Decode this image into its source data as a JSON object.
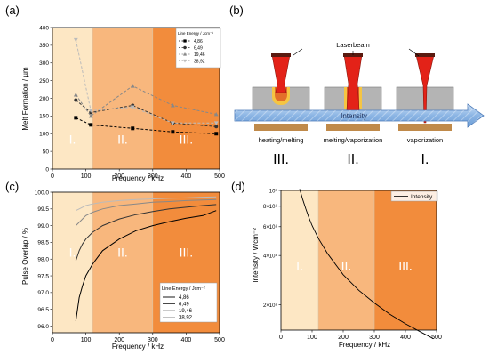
{
  "panel_labels": {
    "a": "(a)",
    "b": "(b)",
    "c": "(c)",
    "d": "(d)"
  },
  "colors": {
    "zone_1": "#fde7c4",
    "zone_2": "#f8b77d",
    "zone_3": "#f28c3c",
    "laser_red": "#e32218",
    "laser_edge": "#8a1a10",
    "block_gray": "#b4b4b4",
    "base_brown": "#c08a4a",
    "arrow_blue": "#8ab4e4"
  },
  "icons": {
    "process_arrow": "arrow-right-icon"
  },
  "chart_data": [
    {
      "panel": "(a)",
      "type": "line",
      "xlabel": "Frequency / kHz",
      "ylabel": "Melt Formation / µm",
      "xlim": [
        0,
        500
      ],
      "ylim": [
        0,
        400
      ],
      "xticks": [
        "0",
        "100",
        "200",
        "300",
        "400",
        "500"
      ],
      "yticks": [
        "0",
        "50",
        "100",
        "150",
        "200",
        "250",
        "300",
        "350",
        "400"
      ],
      "x": [
        70,
        115,
        240,
        360,
        490
      ],
      "zones": [
        {
          "label": "I.",
          "from": 0,
          "to": 120
        },
        {
          "label": "II.",
          "from": 120,
          "to": 300
        },
        {
          "label": "III.",
          "from": 300,
          "to": 500
        }
      ],
      "legend": {
        "title": "Line Energy / Jcm⁻¹",
        "position": "top-right"
      },
      "series": [
        {
          "name": "4,86",
          "values": [
            145,
            125,
            115,
            105,
            100
          ],
          "color": "#000000",
          "marker": "square"
        },
        {
          "name": "6,49",
          "values": [
            195,
            160,
            180,
            130,
            120
          ],
          "color": "#333333",
          "marker": "circle"
        },
        {
          "name": "19,46",
          "values": [
            210,
            150,
            235,
            180,
            155
          ],
          "color": "#888888",
          "marker": "triangle"
        },
        {
          "name": "38,92",
          "values": [
            365,
            165,
            175,
            130,
            130
          ],
          "color": "#bbbbbb",
          "marker": "triangle-down"
        }
      ]
    },
    {
      "panel": "(c)",
      "type": "line",
      "xlabel": "Frequency / kHz",
      "ylabel": "Pulse Overlap / %",
      "xlim": [
        0,
        500
      ],
      "ylim": [
        95.8,
        100.0
      ],
      "xticks": [
        "0",
        "100",
        "200",
        "300",
        "400",
        "500"
      ],
      "yticks": [
        "96.0",
        "96.5",
        "97.0",
        "97.5",
        "98.0",
        "98.5",
        "99.0",
        "99.5",
        "100.0"
      ],
      "x": [
        70,
        80,
        90,
        100,
        120,
        150,
        200,
        250,
        300,
        350,
        400,
        450,
        490
      ],
      "zones": [
        {
          "label": "I.",
          "from": 0,
          "to": 120
        },
        {
          "label": "II.",
          "from": 120,
          "to": 300
        },
        {
          "label": "III.",
          "from": 300,
          "to": 500
        }
      ],
      "legend": {
        "title": "Line Energy / Jcm⁻²",
        "position": "bottom-right"
      },
      "series": [
        {
          "name": "4,86",
          "values": [
            96.15,
            96.85,
            97.2,
            97.5,
            97.85,
            98.25,
            98.6,
            98.85,
            99.0,
            99.12,
            99.22,
            99.3,
            99.45
          ],
          "color": "#000000"
        },
        {
          "name": "6,49",
          "values": [
            97.95,
            98.25,
            98.45,
            98.6,
            98.8,
            99.0,
            99.2,
            99.33,
            99.42,
            99.5,
            99.55,
            99.6,
            99.63
          ],
          "color": "#333333"
        },
        {
          "name": "19,46",
          "values": [
            99.0,
            99.1,
            99.2,
            99.3,
            99.4,
            99.5,
            99.6,
            99.65,
            99.7,
            99.72,
            99.75,
            99.77,
            99.78
          ],
          "color": "#888888"
        },
        {
          "name": "38,92",
          "values": [
            99.45,
            99.5,
            99.55,
            99.6,
            99.65,
            99.7,
            99.75,
            99.78,
            99.8,
            99.82,
            99.83,
            99.85,
            99.86
          ],
          "color": "#bbbbbb"
        }
      ]
    },
    {
      "panel": "(d)",
      "type": "line",
      "scale": "log",
      "xlabel": "Frequency / kHz",
      "ylabel": "Intensity / Wcm⁻²",
      "xlim": [
        0,
        500
      ],
      "ylim": [
        140000000.0,
        1000000000.0
      ],
      "xticks": [
        "0",
        "100",
        "200",
        "300",
        "400",
        "500"
      ],
      "yticks": [
        {
          "label": "10⁹",
          "value": 1000000000.0
        },
        {
          "label": "8×10⁸",
          "value": 800000000.0
        },
        {
          "label": "6×10⁸",
          "value": 600000000.0
        },
        {
          "label": "4×10⁸",
          "value": 400000000.0
        },
        {
          "label": "2×10⁸",
          "value": 200000000.0
        }
      ],
      "x": [
        60,
        70,
        80,
        90,
        100,
        120,
        150,
        200,
        250,
        300,
        350,
        400,
        450,
        490
      ],
      "zones": [
        {
          "label": "I.",
          "from": 0,
          "to": 120
        },
        {
          "label": "II.",
          "from": 120,
          "to": 300
        },
        {
          "label": "III.",
          "from": 300,
          "to": 500
        }
      ],
      "legend": {
        "position": "top-right"
      },
      "series": [
        {
          "name": "Intensity",
          "values": [
            1020000000.0,
            880000000.0,
            770000000.0,
            680000000.0,
            610000000.0,
            510000000.0,
            410000000.0,
            305000000.0,
            245000000.0,
            205000000.0,
            175000000.0,
            153000000.0,
            136000000.0,
            124000000.0
          ],
          "color": "#000000"
        }
      ]
    }
  ],
  "diagram_b": {
    "beam_label": "Laserbeam",
    "arrow_label": "Intensity",
    "stages": [
      {
        "caption": "heating/melting",
        "roman": "III."
      },
      {
        "caption": "melting/vaporization",
        "roman": "II."
      },
      {
        "caption": "vaporization",
        "roman": "I."
      }
    ]
  }
}
